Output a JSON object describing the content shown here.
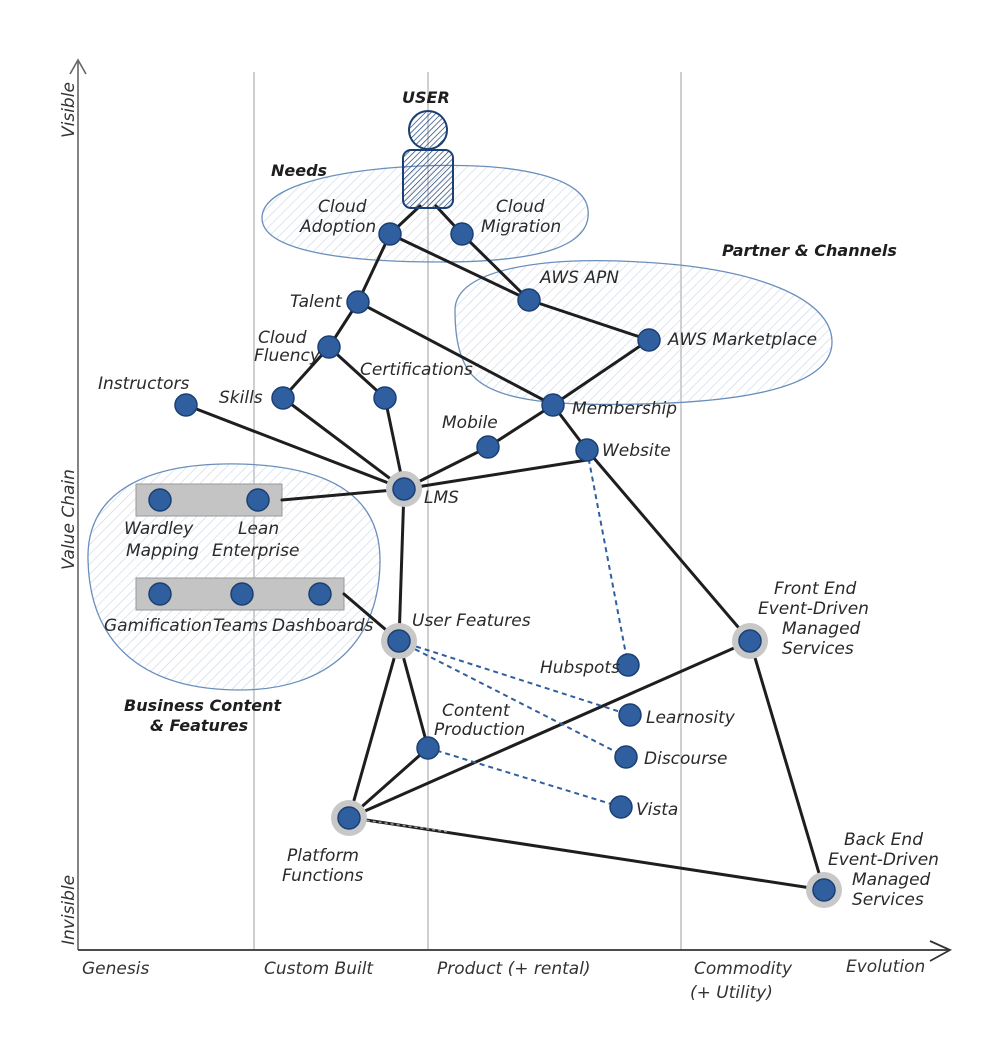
{
  "y_axis": {
    "top": "Visible",
    "middle": "Value Chain",
    "bottom": "Invisible"
  },
  "x_axis": {
    "stages": [
      {
        "line1": "Genesis",
        "line2": ""
      },
      {
        "line1": "Custom Built",
        "line2": ""
      },
      {
        "line1": "Product (+ rental)",
        "line2": ""
      },
      {
        "line1": "Commodity",
        "line2": "(+ Utility)"
      }
    ],
    "end": "Evolution"
  },
  "groups": {
    "needs": "Needs",
    "partner": "Partner & Channels",
    "business": [
      "Business Content",
      "& Features"
    ]
  },
  "user": "USER",
  "nodes": {
    "cloud_adoption": [
      "Cloud",
      "Adoption"
    ],
    "cloud_migration": [
      "Cloud",
      "Migration"
    ],
    "aws_apn": [
      "AWS APN"
    ],
    "aws_marketplace": [
      "AWS Marketplace"
    ],
    "talent": [
      "Talent"
    ],
    "cloud_fluency": [
      "Cloud",
      "Fluency"
    ],
    "certifications": [
      "Certifications"
    ],
    "instructors": [
      "Instructors"
    ],
    "skills": [
      "Skills"
    ],
    "membership": [
      "Membership"
    ],
    "mobile": [
      "Mobile"
    ],
    "website": [
      "Website"
    ],
    "lms": [
      "LMS"
    ],
    "wardley_mapping": [
      "Wardley",
      "Mapping"
    ],
    "lean_enterprise": [
      "Lean",
      "Enterprise"
    ],
    "gamification": [
      "Gamification"
    ],
    "teams": [
      "Teams"
    ],
    "dashboards": [
      "Dashboards"
    ],
    "user_features": [
      "User Features"
    ],
    "hubspots": [
      "Hubspots"
    ],
    "learnosity": [
      "Learnosity"
    ],
    "content_production": [
      "Content",
      "Production"
    ],
    "discourse": [
      "Discourse"
    ],
    "vista": [
      "Vista"
    ],
    "platform_functions": [
      "Platform",
      "Functions"
    ],
    "front_end": [
      "Front End",
      "Event-Driven",
      "Managed",
      "Services"
    ],
    "back_end": [
      "Back End",
      "Event-Driven",
      "Managed",
      "Services"
    ]
  },
  "colors": {
    "node": "#2f5f9e",
    "node_stroke": "#1b3f73",
    "halo": "#c8c8c8",
    "group": "#6a8fbd",
    "line": "#1e1e1e"
  }
}
